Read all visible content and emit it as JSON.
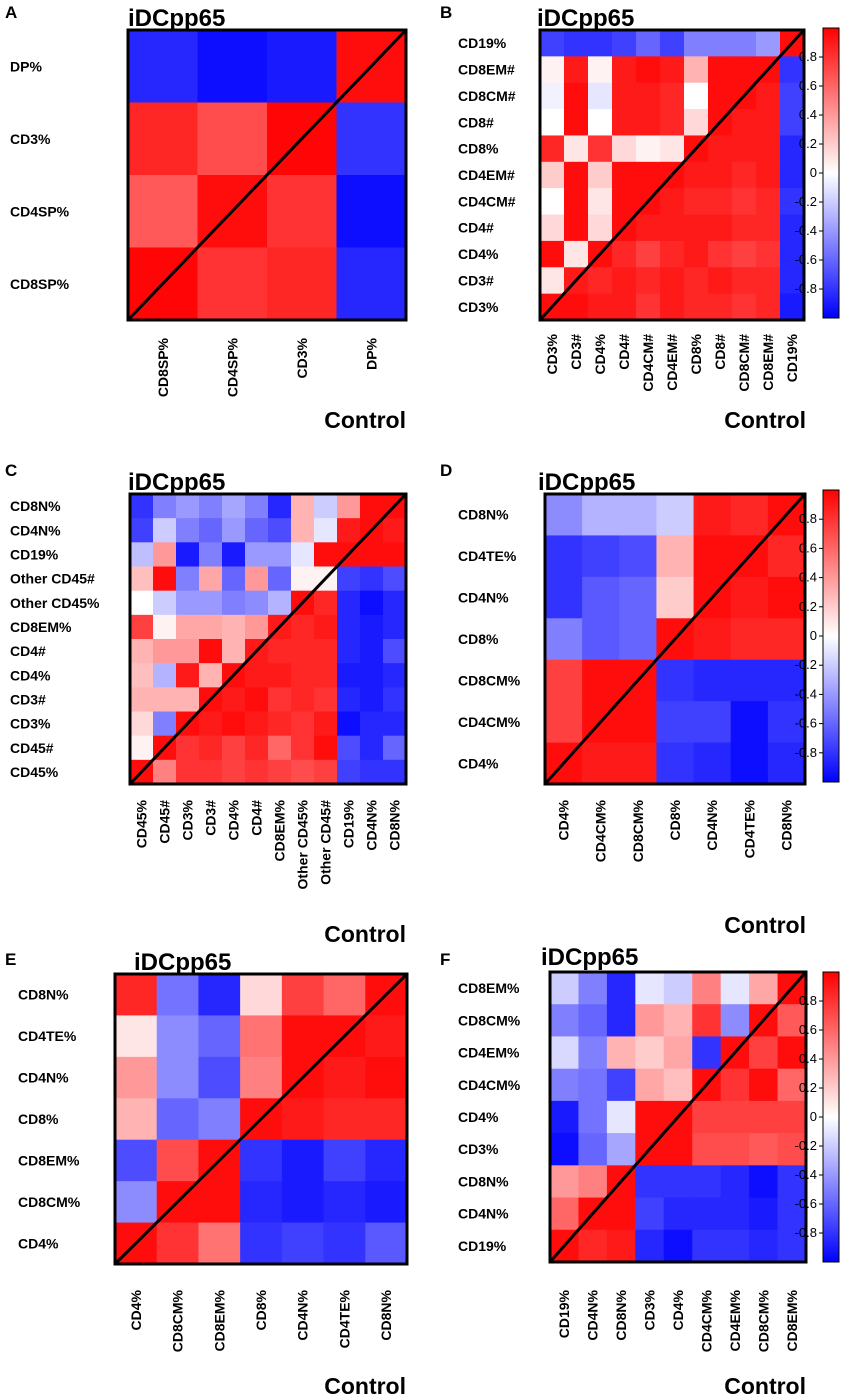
{
  "colorscale": {
    "min": -1,
    "max": 1,
    "neg_color": "#0000ff",
    "mid_color": "#ffffff",
    "pos_color": "#ff0000",
    "outline_color": "#000000"
  },
  "chart_data": [
    {
      "type": "heatmap",
      "panel": "A",
      "title": "iDCpp65",
      "xlabel": "Control",
      "row_labels": [
        "DP%",
        "CD3%",
        "CD4SP%",
        "CD8SP%"
      ],
      "col_labels": [
        "CD8SP%",
        "CD4SP%",
        "CD3%",
        "DP%"
      ],
      "values": [
        [
          -0.85,
          -0.95,
          -0.9,
          0.95
        ],
        [
          0.85,
          0.7,
          0.98,
          -0.8
        ],
        [
          0.65,
          0.95,
          0.8,
          -0.95
        ],
        [
          0.98,
          0.8,
          0.85,
          -0.85
        ]
      ],
      "colorbar": false
    },
    {
      "type": "heatmap",
      "panel": "B",
      "title": "iDCpp65",
      "xlabel": "Control",
      "row_labels": [
        "CD19%",
        "CD8EM#",
        "CD8CM#",
        "CD8#",
        "CD8%",
        "CD4EM#",
        "CD4CM#",
        "CD4#",
        "CD4%",
        "CD3#",
        "CD3%"
      ],
      "col_labels": [
        "CD3%",
        "CD3#",
        "CD4%",
        "CD4#",
        "CD4CM#",
        "CD4EM#",
        "CD8%",
        "CD8#",
        "CD8CM#",
        "CD8EM#",
        "CD19%"
      ],
      "values": [
        [
          -0.75,
          -0.8,
          -0.8,
          -0.75,
          -0.6,
          -0.75,
          -0.5,
          -0.5,
          -0.5,
          -0.4,
          0.95
        ],
        [
          0.05,
          0.9,
          0.05,
          0.9,
          0.95,
          0.9,
          0.3,
          0.95,
          0.95,
          0.95,
          -0.8
        ],
        [
          -0.05,
          0.95,
          -0.1,
          0.9,
          0.9,
          0.85,
          0.0,
          0.95,
          0.95,
          0.9,
          -0.75
        ],
        [
          0.0,
          0.95,
          0.0,
          0.9,
          0.9,
          0.85,
          0.15,
          0.95,
          0.9,
          0.9,
          -0.75
        ],
        [
          0.85,
          0.1,
          0.8,
          0.15,
          0.05,
          0.1,
          0.95,
          0.9,
          0.9,
          0.9,
          -0.85
        ],
        [
          0.2,
          0.95,
          0.2,
          0.95,
          0.95,
          0.95,
          0.9,
          0.9,
          0.85,
          0.9,
          -0.85
        ],
        [
          0.0,
          0.95,
          0.1,
          0.95,
          0.95,
          0.9,
          0.85,
          0.85,
          0.8,
          0.85,
          -0.8
        ],
        [
          0.15,
          0.95,
          0.15,
          0.95,
          0.9,
          0.9,
          0.9,
          0.9,
          0.85,
          0.85,
          -0.85
        ],
        [
          0.95,
          0.1,
          0.95,
          0.85,
          0.75,
          0.85,
          0.9,
          0.8,
          0.75,
          0.8,
          -0.85
        ],
        [
          0.1,
          0.9,
          0.85,
          0.9,
          0.85,
          0.9,
          0.85,
          0.9,
          0.85,
          0.85,
          -0.85
        ],
        [
          0.95,
          0.95,
          0.9,
          0.9,
          0.8,
          0.9,
          0.85,
          0.85,
          0.8,
          0.85,
          -0.9
        ]
      ],
      "colorbar": true,
      "colorbar_ticks": [
        0.8,
        0.6,
        0.4,
        0.2,
        0,
        -0.2,
        -0.4,
        -0.6,
        -0.8
      ]
    },
    {
      "type": "heatmap",
      "panel": "C",
      "title": "iDCpp65",
      "xlabel": "Control",
      "row_labels": [
        "CD8N%",
        "CD4N%",
        "CD19%",
        "Other CD45#",
        "Other CD45%",
        "CD8EM%",
        "CD4#",
        "CD4%",
        "CD3#",
        "CD3%",
        "CD45#",
        "CD45%"
      ],
      "col_labels": [
        "CD45%",
        "CD45#",
        "CD3%",
        "CD3#",
        "CD4%",
        "CD4#",
        "CD8EM%",
        "Other CD45%",
        "Other CD45#",
        "CD19%",
        "CD4N%",
        "CD8N%"
      ],
      "values": [
        [
          -0.8,
          -0.5,
          -0.4,
          -0.5,
          -0.35,
          -0.5,
          -0.85,
          0.3,
          -0.2,
          0.4,
          0.95,
          0.95
        ],
        [
          -0.75,
          -0.2,
          -0.5,
          -0.6,
          -0.4,
          -0.6,
          -0.7,
          0.3,
          -0.1,
          0.9,
          0.95,
          0.9
        ],
        [
          -0.25,
          0.4,
          -0.9,
          -0.5,
          -0.9,
          -0.4,
          -0.4,
          -0.1,
          0.95,
          0.95,
          0.95,
          0.95
        ],
        [
          0.25,
          0.95,
          -0.5,
          0.35,
          -0.6,
          0.4,
          -0.6,
          0.05,
          0.05,
          -0.75,
          -0.8,
          -0.7
        ],
        [
          0.0,
          -0.2,
          -0.4,
          -0.4,
          -0.5,
          -0.45,
          -0.3,
          0.95,
          0.85,
          -0.85,
          -0.95,
          -0.85
        ],
        [
          0.75,
          0.05,
          0.35,
          0.35,
          0.3,
          0.4,
          0.9,
          0.85,
          0.9,
          -0.85,
          -0.9,
          -0.85
        ],
        [
          0.3,
          0.4,
          0.4,
          0.95,
          0.3,
          0.9,
          0.85,
          0.85,
          0.85,
          -0.85,
          -0.9,
          -0.7
        ],
        [
          0.25,
          -0.3,
          0.9,
          0.3,
          0.95,
          0.9,
          0.9,
          0.85,
          0.85,
          -0.9,
          -0.9,
          -0.85
        ],
        [
          0.3,
          0.3,
          0.3,
          0.95,
          0.9,
          0.95,
          0.8,
          0.85,
          0.8,
          -0.85,
          -0.9,
          -0.8
        ],
        [
          0.15,
          -0.5,
          0.95,
          0.9,
          0.95,
          0.9,
          0.85,
          0.8,
          0.9,
          -0.95,
          -0.85,
          -0.85
        ],
        [
          0.05,
          0.95,
          0.8,
          0.85,
          0.75,
          0.85,
          0.6,
          0.8,
          0.95,
          -0.7,
          -0.85,
          -0.6
        ],
        [
          0.95,
          0.5,
          0.8,
          0.8,
          0.75,
          0.8,
          0.75,
          0.7,
          0.75,
          -0.75,
          -0.8,
          -0.8
        ]
      ],
      "colorbar": false
    },
    {
      "type": "heatmap",
      "panel": "D",
      "title": "iDCpp65",
      "xlabel": "Control",
      "row_labels": [
        "CD8N%",
        "CD4TE%",
        "CD4N%",
        "CD8%",
        "CD8CM%",
        "CD4CM%",
        "CD4%"
      ],
      "col_labels": [
        "CD4%",
        "CD4CM%",
        "CD8CM%",
        "CD8%",
        "CD4N%",
        "CD4TE%",
        "CD8N%"
      ],
      "values": [
        [
          -0.45,
          -0.3,
          -0.3,
          -0.2,
          0.9,
          0.85,
          0.95
        ],
        [
          -0.8,
          -0.75,
          -0.7,
          0.3,
          0.95,
          0.95,
          0.85
        ],
        [
          -0.8,
          -0.65,
          -0.6,
          0.2,
          0.95,
          0.9,
          0.95
        ],
        [
          -0.5,
          -0.65,
          -0.6,
          0.95,
          0.9,
          0.85,
          0.85
        ],
        [
          0.75,
          0.95,
          0.95,
          -0.8,
          -0.85,
          -0.85,
          -0.85
        ],
        [
          0.75,
          0.95,
          0.95,
          -0.75,
          -0.75,
          -0.95,
          -0.8
        ],
        [
          0.95,
          0.9,
          0.9,
          -0.8,
          -0.85,
          -0.95,
          -0.85
        ]
      ],
      "colorbar": true,
      "colorbar_ticks": [
        0.8,
        0.6,
        0.4,
        0.2,
        0,
        -0.2,
        -0.4,
        -0.6,
        -0.8
      ]
    },
    {
      "type": "heatmap",
      "panel": "E",
      "title": "iDCpp65",
      "xlabel": "Control",
      "row_labels": [
        "CD8N%",
        "CD4TE%",
        "CD4N%",
        "CD8%",
        "CD8EM%",
        "CD8CM%",
        "CD4%"
      ],
      "col_labels": [
        "CD4%",
        "CD8CM%",
        "CD8EM%",
        "CD8%",
        "CD4N%",
        "CD4TE%",
        "CD8N%"
      ],
      "values": [
        [
          0.85,
          -0.55,
          -0.85,
          0.15,
          0.75,
          0.6,
          0.95
        ],
        [
          0.1,
          -0.45,
          -0.6,
          0.55,
          0.95,
          0.95,
          0.9
        ],
        [
          0.4,
          -0.45,
          -0.7,
          0.5,
          0.95,
          0.9,
          0.95
        ],
        [
          0.3,
          -0.6,
          -0.5,
          0.95,
          0.9,
          0.85,
          0.85
        ],
        [
          -0.7,
          0.7,
          0.95,
          -0.8,
          -0.9,
          -0.75,
          -0.85
        ],
        [
          -0.45,
          0.95,
          0.95,
          -0.85,
          -0.9,
          -0.85,
          -0.9
        ],
        [
          0.95,
          0.8,
          0.55,
          -0.8,
          -0.75,
          -0.8,
          -0.65
        ]
      ],
      "colorbar": false
    },
    {
      "type": "heatmap",
      "panel": "F",
      "title": "iDCpp65",
      "xlabel": "Control",
      "row_labels": [
        "CD8EM%",
        "CD8CM%",
        "CD4EM%",
        "CD4CM%",
        "CD4%",
        "CD3%",
        "CD8N%",
        "CD4N%",
        "CD19%"
      ],
      "col_labels": [
        "CD19%",
        "CD4N%",
        "CD8N%",
        "CD3%",
        "CD4%",
        "CD4CM%",
        "CD4EM%",
        "CD8CM%",
        "CD8EM%"
      ],
      "values": [
        [
          -0.2,
          -0.5,
          -0.85,
          -0.1,
          -0.2,
          0.5,
          -0.1,
          0.35,
          0.95
        ],
        [
          -0.5,
          -0.6,
          -0.85,
          0.4,
          0.3,
          0.8,
          -0.45,
          0.95,
          0.65
        ],
        [
          -0.15,
          -0.5,
          0.3,
          0.2,
          0.35,
          -0.8,
          0.95,
          0.75,
          0.95
        ],
        [
          -0.5,
          -0.55,
          -0.75,
          0.35,
          0.25,
          0.95,
          0.8,
          0.95,
          0.6
        ],
        [
          -0.9,
          -0.55,
          -0.1,
          0.95,
          0.95,
          0.75,
          0.75,
          0.75,
          0.75
        ],
        [
          -0.95,
          -0.6,
          -0.35,
          0.95,
          0.95,
          0.7,
          0.7,
          0.65,
          0.7
        ],
        [
          0.4,
          0.5,
          0.95,
          -0.8,
          -0.8,
          -0.8,
          -0.85,
          -0.95,
          -0.8
        ],
        [
          0.6,
          0.95,
          0.95,
          -0.75,
          -0.85,
          -0.85,
          -0.85,
          -0.9,
          -0.8
        ],
        [
          0.95,
          0.85,
          0.9,
          -0.85,
          -0.95,
          -0.8,
          -0.8,
          -0.85,
          -0.8
        ]
      ],
      "colorbar": true,
      "colorbar_ticks": [
        0.8,
        0.6,
        0.4,
        0.2,
        0,
        -0.2,
        -0.4,
        -0.6,
        -0.8
      ]
    }
  ]
}
